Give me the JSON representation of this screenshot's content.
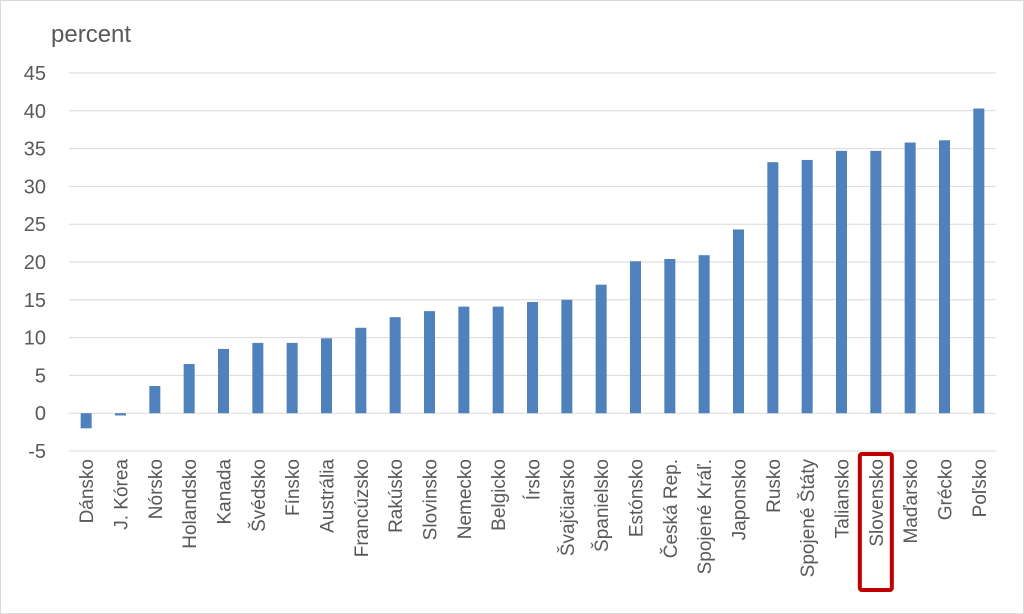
{
  "chart_data": {
    "type": "bar",
    "unit_label": "percent",
    "categories": [
      "Dánsko",
      "J. Kórea",
      "Nórsko",
      "Holandsko",
      "Kanada",
      "Švédsko",
      "Fínsko",
      "Austrália",
      "Francúzsko",
      "Rakúsko",
      "Slovinsko",
      "Nemecko",
      "Belgicko",
      "Írsko",
      "Švajčiarsko",
      "Španielsko",
      "Estónsko",
      "Česká Rep.",
      "Spojené Kráľ.",
      "Japonsko",
      "Rusko",
      "Spojené Štáty",
      "Taliansko",
      "Slovensko",
      "Maďarsko",
      "Grécko",
      "Poľsko"
    ],
    "values": [
      -2.0,
      -0.3,
      3.6,
      6.5,
      8.5,
      9.3,
      9.3,
      9.9,
      11.3,
      12.7,
      13.5,
      14.1,
      14.1,
      14.7,
      15.0,
      17.0,
      20.1,
      20.4,
      20.9,
      24.3,
      33.2,
      33.5,
      34.7,
      34.7,
      35.8,
      36.1,
      40.3
    ],
    "y_ticks": [
      "45",
      "40",
      "35",
      "30",
      "25",
      "20",
      "15",
      "10",
      "5",
      "0",
      "-5"
    ],
    "ylim": [
      -5,
      45
    ],
    "grid": true,
    "highlighted_category": "Slovensko",
    "colors": {
      "bar": "#4f81bd",
      "highlight_box": "#c00000",
      "grid": "#d9d9d9",
      "text": "#595959"
    }
  }
}
